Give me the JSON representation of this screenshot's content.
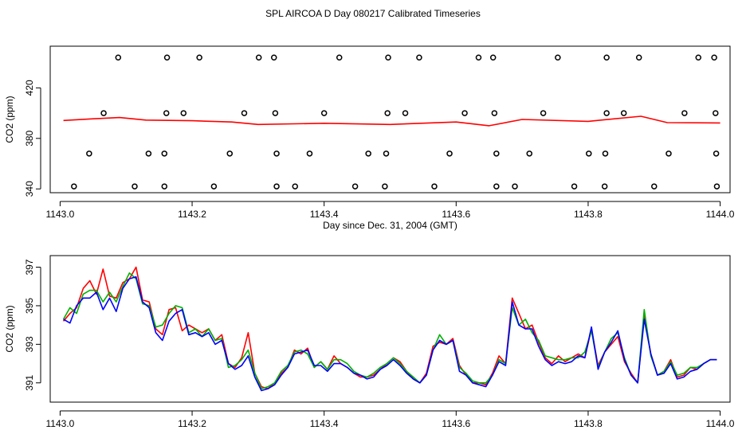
{
  "title": "SPL AIRCOA D  Day 080217  Calibrated Timeseries",
  "colors": {
    "series_red": "#ff0000",
    "series_green": "#00b000",
    "series_blue": "#0000ff",
    "axis": "#000000",
    "markers": "#000000"
  },
  "chart_data": [
    {
      "type": "line",
      "xlabel": "Day since Dec. 31, 2004 (GMT)",
      "ylabel": "CO2 (ppm)",
      "xlim": [
        1142.985,
        1144.015
      ],
      "ylim": [
        337,
        453
      ],
      "xticks": [
        1143.0,
        1143.2,
        1143.4,
        1143.6,
        1143.8,
        1144.0
      ],
      "xtick_labels": [
        "1143.0",
        "1143.2",
        "1143.4",
        "1143.6",
        "1143.8",
        "1144.0"
      ],
      "yticks": [
        340,
        380,
        420
      ],
      "ytick_labels": [
        "340",
        "380",
        "420"
      ],
      "marker_series": {
        "name": "",
        "style": "open-circle",
        "points": [
          [
            1143.088,
            444
          ],
          [
            1143.162,
            444
          ],
          [
            1143.211,
            444
          ],
          [
            1143.301,
            444
          ],
          [
            1143.324,
            444
          ],
          [
            1143.423,
            444
          ],
          [
            1143.497,
            444
          ],
          [
            1143.544,
            444
          ],
          [
            1143.634,
            444
          ],
          [
            1143.656,
            444
          ],
          [
            1143.754,
            444
          ],
          [
            1143.828,
            444
          ],
          [
            1143.877,
            444
          ],
          [
            1143.967,
            444
          ],
          [
            1143.991,
            444
          ],
          [
            1143.066,
            400
          ],
          [
            1143.161,
            400
          ],
          [
            1143.187,
            400
          ],
          [
            1143.279,
            400
          ],
          [
            1143.326,
            400
          ],
          [
            1143.4,
            400
          ],
          [
            1143.496,
            400
          ],
          [
            1143.523,
            400
          ],
          [
            1143.613,
            400
          ],
          [
            1143.658,
            400
          ],
          [
            1143.732,
            400
          ],
          [
            1143.828,
            400
          ],
          [
            1143.854,
            400
          ],
          [
            1143.946,
            400
          ],
          [
            1143.993,
            400
          ],
          [
            1143.044,
            368
          ],
          [
            1143.134,
            368
          ],
          [
            1143.158,
            368
          ],
          [
            1143.257,
            368
          ],
          [
            1143.328,
            368
          ],
          [
            1143.378,
            368
          ],
          [
            1143.467,
            368
          ],
          [
            1143.494,
            368
          ],
          [
            1143.59,
            368
          ],
          [
            1143.661,
            368
          ],
          [
            1143.711,
            368
          ],
          [
            1143.801,
            368
          ],
          [
            1143.826,
            368
          ],
          [
            1143.922,
            368
          ],
          [
            1143.994,
            368
          ],
          [
            1143.021,
            342
          ],
          [
            1143.113,
            342
          ],
          [
            1143.158,
            342
          ],
          [
            1143.233,
            342
          ],
          [
            1143.328,
            342
          ],
          [
            1143.356,
            342
          ],
          [
            1143.447,
            342
          ],
          [
            1143.492,
            342
          ],
          [
            1143.567,
            342
          ],
          [
            1143.661,
            342
          ],
          [
            1143.689,
            342
          ],
          [
            1143.779,
            342
          ],
          [
            1143.825,
            342
          ],
          [
            1143.9,
            342
          ],
          [
            1143.995,
            342
          ]
        ]
      },
      "series": [
        {
          "x": [
            1143.005,
            1143.05,
            1143.09,
            1143.13,
            1143.2,
            1143.26,
            1143.3,
            1143.4,
            1143.5,
            1143.6,
            1143.65,
            1143.7,
            1143.8,
            1143.88,
            1143.92,
            1144.0
          ],
          "values": [
            394.2,
            395.5,
            396.5,
            394.5,
            394,
            393,
            391,
            392,
            391,
            393,
            390,
            395,
            393.5,
            397.5,
            392.5,
            392.2
          ]
        }
      ]
    },
    {
      "type": "line",
      "xlabel": "Day since Dec. 31, 2004 (GMT)",
      "ylabel": "CO2 (ppm)",
      "xlim": [
        1142.985,
        1144.015
      ],
      "ylim": [
        390.0,
        397.6
      ],
      "xticks": [
        1143.0,
        1143.2,
        1143.4,
        1143.6,
        1143.8,
        1144.0
      ],
      "xtick_labels": [
        "1143.0",
        "1143.2",
        "1143.4",
        "1143.6",
        "1143.8",
        "1144.0"
      ],
      "yticks": [
        391,
        393,
        395,
        397
      ],
      "ytick_labels": [
        "391",
        "393",
        "395",
        "397"
      ],
      "x": [
        1143.005,
        1143.015,
        1143.025,
        1143.035,
        1143.045,
        1143.055,
        1143.065,
        1143.075,
        1143.085,
        1143.095,
        1143.105,
        1143.115,
        1143.125,
        1143.135,
        1143.145,
        1143.155,
        1143.165,
        1143.175,
        1143.185,
        1143.195,
        1143.205,
        1143.215,
        1143.225,
        1143.235,
        1143.245,
        1143.255,
        1143.265,
        1143.275,
        1143.285,
        1143.295,
        1143.305,
        1143.315,
        1143.325,
        1143.335,
        1143.345,
        1143.355,
        1143.365,
        1143.375,
        1143.385,
        1143.395,
        1143.405,
        1143.415,
        1143.425,
        1143.435,
        1143.445,
        1143.455,
        1143.465,
        1143.475,
        1143.485,
        1143.495,
        1143.505,
        1143.515,
        1143.525,
        1143.535,
        1143.545,
        1143.555,
        1143.565,
        1143.575,
        1143.585,
        1143.595,
        1143.605,
        1143.615,
        1143.625,
        1143.635,
        1143.645,
        1143.655,
        1143.665,
        1143.675,
        1143.685,
        1143.695,
        1143.705,
        1143.715,
        1143.725,
        1143.735,
        1143.745,
        1143.755,
        1143.765,
        1143.775,
        1143.785,
        1143.795,
        1143.805,
        1143.815,
        1143.825,
        1143.835,
        1143.845,
        1143.855,
        1143.865,
        1143.875,
        1143.885,
        1143.895,
        1143.905,
        1143.915,
        1143.925,
        1143.935,
        1143.945,
        1143.955,
        1143.965,
        1143.975,
        1143.985,
        1143.995
      ],
      "series": [
        {
          "name": "",
          "values": [
            394.2,
            394.6,
            394.9,
            395.9,
            396.3,
            395.6,
            396.9,
            395.5,
            395.4,
            396.2,
            396.4,
            397.0,
            395.3,
            395.2,
            393.8,
            393.5,
            394.8,
            394.9,
            393.7,
            394.0,
            393.8,
            393.6,
            393.8,
            393.2,
            393.5,
            392.0,
            391.8,
            392.3,
            393.6,
            391.5,
            390.8,
            390.7,
            391.0,
            391.5,
            391.8,
            392.7,
            392.5,
            392.8,
            391.8,
            392.1,
            391.7,
            392.4,
            392.0,
            391.8,
            391.5,
            391.3,
            391.3,
            391.4,
            391.7,
            392.0,
            392.3,
            392.1,
            391.6,
            391.2,
            391.0,
            391.5,
            392.9,
            393.1,
            393.0,
            393.3,
            391.9,
            391.4,
            391.0,
            391.0,
            390.9,
            391.5,
            392.4,
            392.0,
            395.4,
            394.6,
            393.8,
            394.0,
            393.1,
            392.3,
            392.0,
            392.4,
            392.1,
            392.3,
            392.5,
            392.3,
            393.8,
            391.9,
            392.6,
            393.0,
            393.4,
            392.1,
            391.5,
            391.0,
            394.5,
            392.5,
            391.4,
            391.6,
            392.2,
            391.3,
            391.4,
            391.8,
            391.7,
            392.0,
            392.2,
            392.2
          ]
        },
        {
          "name": "",
          "values": [
            394.3,
            394.9,
            394.6,
            395.6,
            395.8,
            395.8,
            395.2,
            395.7,
            395.2,
            396.0,
            396.7,
            396.4,
            395.1,
            395.0,
            393.9,
            394.0,
            394.6,
            395.0,
            394.9,
            393.6,
            393.8,
            393.4,
            393.8,
            393.2,
            393.3,
            391.8,
            391.9,
            392.2,
            392.7,
            391.5,
            390.7,
            390.8,
            391.0,
            391.6,
            391.9,
            392.6,
            392.7,
            392.5,
            391.8,
            392.1,
            391.7,
            392.2,
            392.2,
            392.0,
            391.6,
            391.4,
            391.3,
            391.5,
            391.8,
            392.0,
            392.3,
            392.0,
            391.6,
            391.3,
            391.0,
            391.4,
            392.7,
            393.5,
            393.0,
            393.2,
            391.8,
            391.5,
            391.1,
            391.0,
            391.0,
            391.4,
            392.2,
            392.0,
            394.9,
            394.0,
            394.3,
            393.6,
            393.2,
            392.4,
            392.3,
            392.2,
            392.2,
            392.3,
            392.3,
            392.6,
            393.7,
            391.8,
            392.6,
            393.3,
            393.6,
            392.3,
            391.4,
            391.0,
            394.8,
            392.4,
            391.4,
            391.6,
            392.1,
            391.4,
            391.5,
            391.8,
            391.8,
            392.0,
            392.2,
            392.2
          ]
        },
        {
          "name": "",
          "values": [
            394.3,
            394.1,
            395.0,
            395.4,
            395.4,
            395.7,
            394.8,
            395.4,
            394.7,
            395.9,
            396.4,
            396.5,
            395.2,
            394.9,
            393.6,
            393.2,
            394.2,
            394.6,
            394.8,
            393.5,
            393.6,
            393.4,
            393.6,
            393.0,
            393.2,
            392.0,
            391.7,
            391.9,
            392.4,
            391.3,
            390.6,
            390.7,
            390.9,
            391.4,
            391.8,
            392.5,
            392.6,
            392.7,
            391.9,
            391.9,
            391.6,
            392.0,
            392.0,
            391.8,
            391.5,
            391.4,
            391.2,
            391.3,
            391.7,
            391.9,
            392.2,
            391.9,
            391.5,
            391.2,
            391.0,
            391.4,
            392.7,
            393.2,
            393.0,
            393.2,
            391.6,
            391.4,
            391.0,
            390.9,
            390.8,
            391.4,
            392.1,
            391.9,
            395.2,
            394.0,
            393.8,
            393.8,
            392.9,
            392.2,
            391.9,
            392.1,
            392.0,
            392.1,
            392.4,
            392.3,
            393.9,
            391.7,
            392.6,
            393.1,
            393.7,
            392.2,
            391.4,
            391.0,
            394.3,
            392.5,
            391.4,
            391.5,
            392.0,
            391.2,
            391.3,
            391.6,
            391.7,
            392.0,
            392.2,
            392.2
          ]
        }
      ]
    }
  ]
}
